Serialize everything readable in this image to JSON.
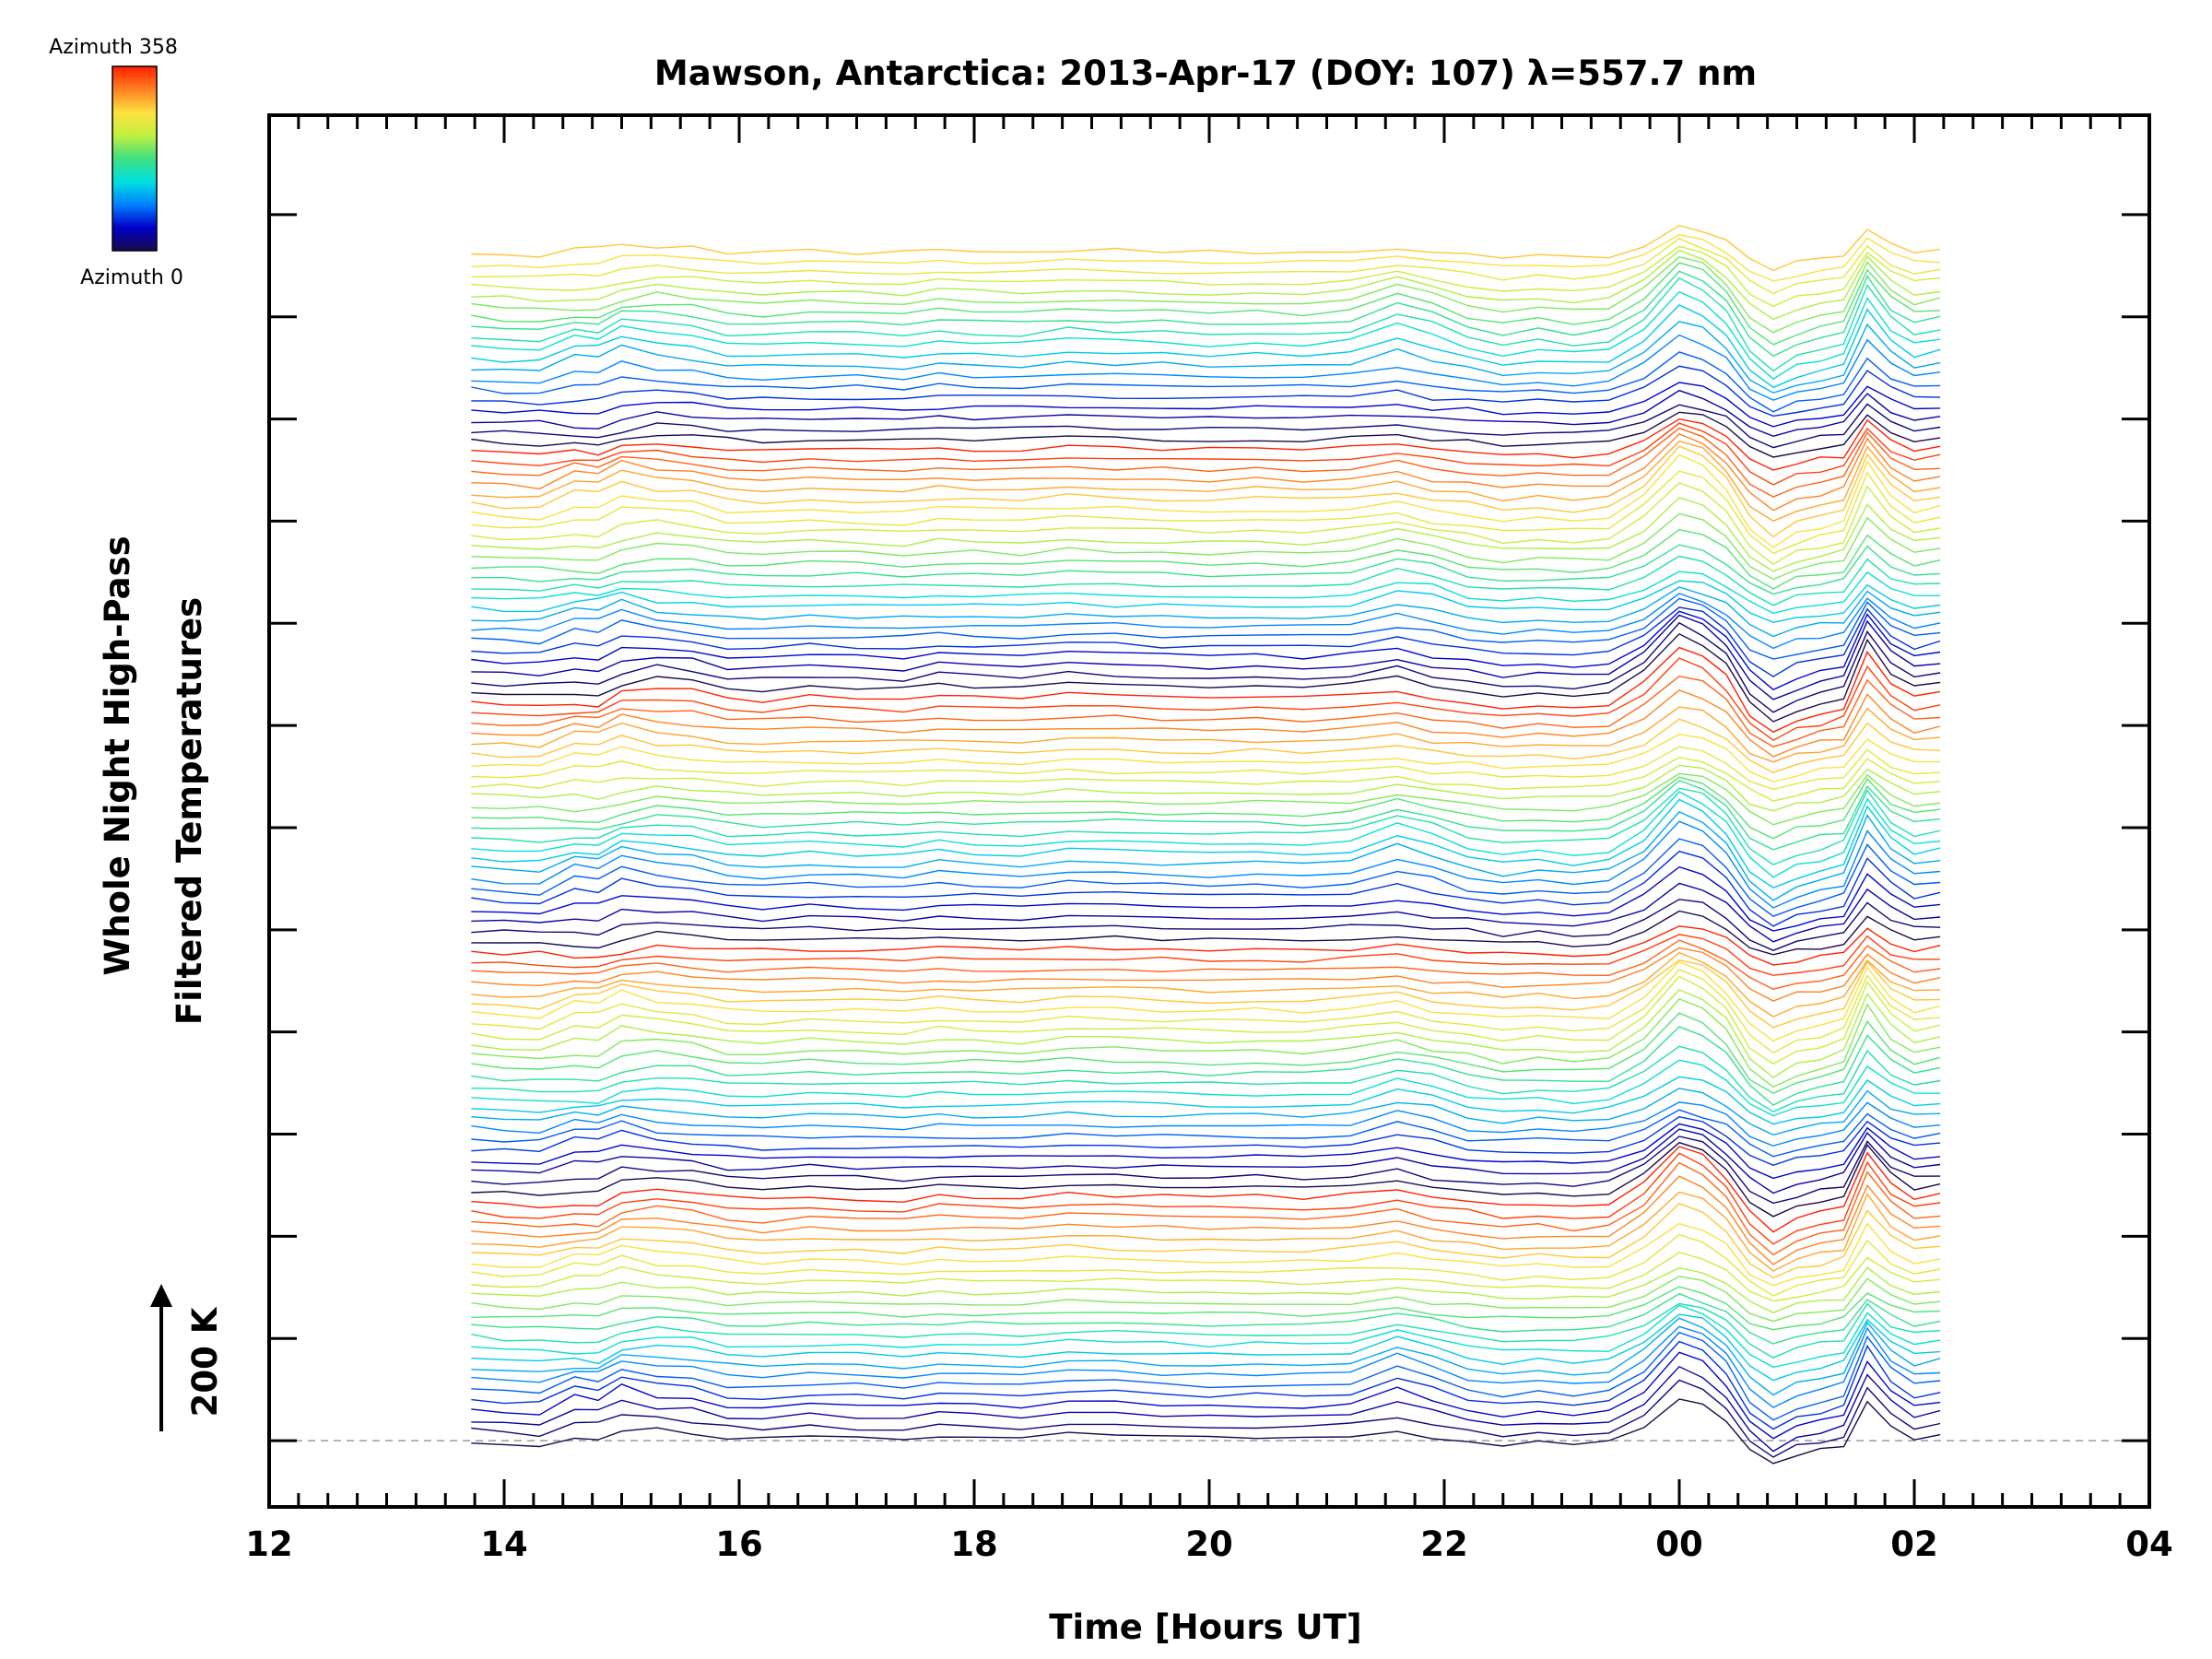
{
  "chart_data": {
    "type": "line",
    "title": "Mawson, Antarctica: 2013-Apr-17 (DOY: 107) λ=557.7 nm",
    "xlabel": "Time [Hours UT]",
    "ylabel_lines": [
      "Whole Night High-Pass",
      "Filtered Temperatures"
    ],
    "scale_label": "200 K",
    "x_ticks": [
      "12",
      "14",
      "16",
      "18",
      "20",
      "22",
      "00",
      "02",
      "04"
    ],
    "x_tick_hours": [
      12,
      14,
      16,
      18,
      20,
      22,
      24,
      26,
      28
    ],
    "xlim": [
      12,
      28
    ],
    "ylim": [
      -240,
      4800
    ],
    "y_major_tick_step": 370,
    "scale_bar_value": 200,
    "grid": false,
    "stack_count": 115,
    "stack_offset": 37.7,
    "data_x_range": [
      13.72,
      26.22
    ],
    "colorbar": {
      "top_label": "Azimuth 358",
      "bottom_label": "Azimuth 0",
      "min": 0,
      "max": 358,
      "colormap": "rainbow",
      "stops": [
        "#1a0a4a",
        "#0000c8",
        "#0080ff",
        "#00e0e0",
        "#40e080",
        "#c0f040",
        "#ffe040",
        "#ff8020",
        "#ff2000"
      ]
    },
    "profile_hours": [
      13.72,
      14.0,
      14.3,
      14.6,
      14.8,
      15.0,
      15.3,
      15.6,
      15.9,
      16.2,
      16.6,
      17.0,
      17.4,
      17.7,
      18.0,
      18.4,
      18.8,
      19.2,
      19.6,
      20.0,
      20.4,
      20.8,
      21.2,
      21.6,
      21.9,
      22.2,
      22.5,
      22.8,
      23.1,
      23.4,
      23.7,
      24.0,
      24.2,
      24.4,
      24.6,
      24.8,
      25.0,
      25.2,
      25.4,
      25.6,
      25.8,
      26.0,
      26.22
    ],
    "profile_kelvin": [
      0,
      -10,
      -15,
      15,
      10,
      50,
      45,
      35,
      10,
      5,
      15,
      10,
      5,
      20,
      15,
      10,
      25,
      20,
      15,
      10,
      15,
      10,
      20,
      40,
      10,
      0,
      -20,
      -10,
      -20,
      -10,
      60,
      180,
      150,
      80,
      -40,
      -100,
      -60,
      -40,
      -20,
      160,
      60,
      10,
      25
    ]
  }
}
